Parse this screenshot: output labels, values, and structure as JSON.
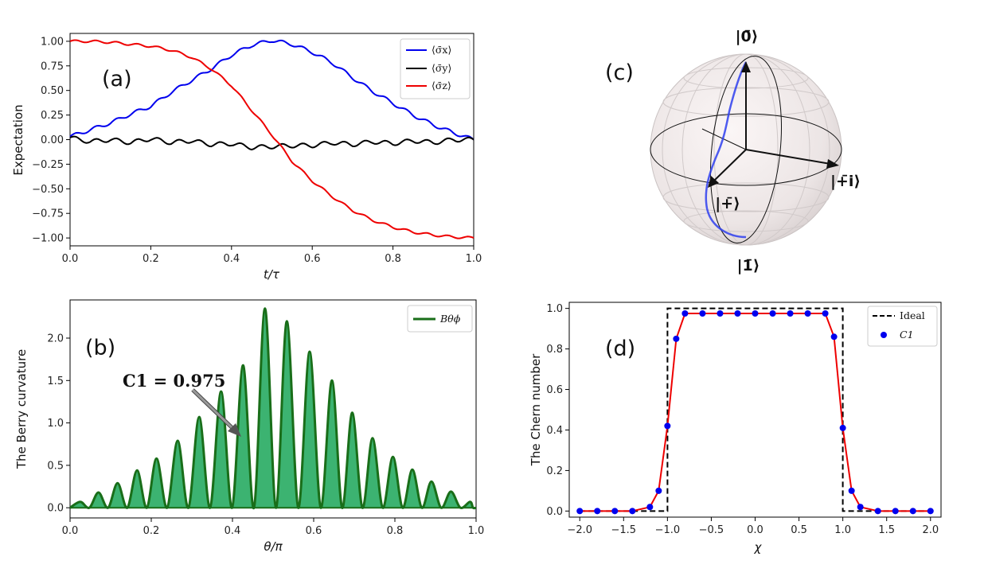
{
  "chart_data": [
    {
      "panel": "(a)",
      "type": "line",
      "xlabel": "t/τ",
      "ylabel": "Expectation",
      "xlim": [
        0,
        1
      ],
      "ylim": [
        -1.08,
        1.08
      ],
      "xticks": [
        "0.0",
        "0.2",
        "0.4",
        "0.6",
        "0.8",
        "1.0"
      ],
      "yticks": [
        "1.00",
        "0.75",
        "0.50",
        "0.25",
        "0.00",
        "−0.25",
        "−0.50",
        "−0.75",
        "−1.00"
      ],
      "legend_position": "top-right",
      "x": [
        0,
        0.05,
        0.1,
        0.15,
        0.2,
        0.25,
        0.3,
        0.35,
        0.4,
        0.45,
        0.5,
        0.55,
        0.6,
        0.65,
        0.7,
        0.75,
        0.8,
        0.85,
        0.9,
        0.95,
        1.0
      ],
      "series": [
        {
          "name": "⟨σ̄x⟩",
          "color": "#0000ee",
          "values": [
            0.03,
            0.1,
            0.17,
            0.26,
            0.34,
            0.48,
            0.6,
            0.72,
            0.86,
            0.96,
            1.01,
            0.97,
            0.89,
            0.78,
            0.63,
            0.49,
            0.37,
            0.25,
            0.15,
            0.07,
            0.0
          ]
        },
        {
          "name": "⟨σ̄y⟩",
          "color": "#000000",
          "values": [
            0.02,
            -0.02,
            0.0,
            -0.03,
            0.01,
            -0.03,
            -0.01,
            -0.05,
            -0.04,
            -0.08,
            -0.07,
            -0.06,
            -0.06,
            -0.03,
            -0.05,
            -0.02,
            -0.04,
            -0.01,
            -0.03,
            0.0,
            0.0
          ]
        },
        {
          "name": "⟨σ̄z⟩",
          "color": "#ee0000",
          "values": [
            1.0,
            1.0,
            0.99,
            0.97,
            0.95,
            0.91,
            0.84,
            0.72,
            0.55,
            0.3,
            0.05,
            -0.22,
            -0.42,
            -0.58,
            -0.72,
            -0.82,
            -0.89,
            -0.94,
            -0.97,
            -0.99,
            -1.0
          ]
        }
      ]
    },
    {
      "panel": "(b)",
      "type": "area",
      "xlabel": "θ/π",
      "ylabel": "The Berry curvature",
      "xlim": [
        0,
        1
      ],
      "ylim": [
        -0.12,
        2.45
      ],
      "xticks": [
        "0.0",
        "0.2",
        "0.4",
        "0.6",
        "0.8",
        "1.0"
      ],
      "yticks": [
        "0.0",
        "0.5",
        "1.0",
        "1.5",
        "2.0"
      ],
      "legend_position": "top-right",
      "series": [
        {
          "name": "Bθϕ",
          "color": "#196e19",
          "fill": "#3cb371"
        }
      ],
      "peaks_x": [
        0.025,
        0.07,
        0.117,
        0.165,
        0.213,
        0.265,
        0.318,
        0.372,
        0.426,
        0.48,
        0.534,
        0.59,
        0.645,
        0.695,
        0.745,
        0.795,
        0.843,
        0.89,
        0.938,
        0.985
      ],
      "peaks_y": [
        0.07,
        0.18,
        0.29,
        0.44,
        0.58,
        0.79,
        1.07,
        1.37,
        1.68,
        2.35,
        2.2,
        1.84,
        1.5,
        1.12,
        0.82,
        0.6,
        0.45,
        0.31,
        0.19,
        0.07
      ],
      "annotation": "C1 = 0.975",
      "annotation_target": [
        0.42,
        0.6
      ]
    },
    {
      "panel": "(c)",
      "type": "bloch-sphere",
      "labels": {
        "top": "|0̄⟩",
        "bottom": "|1̄⟩",
        "front": "|+̄⟩",
        "right": "|+̄i⟩"
      }
    },
    {
      "panel": "(d)",
      "type": "line",
      "xlabel": "χ",
      "ylabel": "The Chern number",
      "xlim": [
        -2.12,
        2.12
      ],
      "ylim": [
        -0.03,
        1.03
      ],
      "xticks": [
        "−2.0",
        "−1.5",
        "−1.0",
        "−0.5",
        "0.0",
        "0.5",
        "1.0",
        "1.5",
        "2.0"
      ],
      "yticks": [
        "0.0",
        "0.2",
        "0.4",
        "0.6",
        "0.8",
        "1.0"
      ],
      "legend_position": "top-right",
      "series": [
        {
          "name": "Ideal",
          "style": "dashed",
          "color": "#000000",
          "x": [
            -2.0,
            -1.0,
            -1.0,
            1.0,
            1.0,
            2.0
          ],
          "values": [
            0,
            0,
            1,
            1,
            0,
            0
          ]
        },
        {
          "name": "C1",
          "style": "markers",
          "color": "#0000ee",
          "line_color": "#ee0000",
          "x": [
            -2.0,
            -1.8,
            -1.6,
            -1.4,
            -1.2,
            -1.1,
            -1.0,
            -0.9,
            -0.8,
            -0.6,
            -0.4,
            -0.2,
            0.0,
            0.2,
            0.4,
            0.6,
            0.8,
            0.9,
            1.0,
            1.1,
            1.2,
            1.4,
            1.6,
            1.8,
            2.0
          ],
          "values": [
            0,
            0,
            0,
            0,
            0.02,
            0.1,
            0.42,
            0.85,
            0.975,
            0.975,
            0.975,
            0.975,
            0.975,
            0.975,
            0.975,
            0.975,
            0.975,
            0.86,
            0.41,
            0.1,
            0.02,
            0,
            0,
            0,
            0
          ]
        }
      ]
    }
  ]
}
